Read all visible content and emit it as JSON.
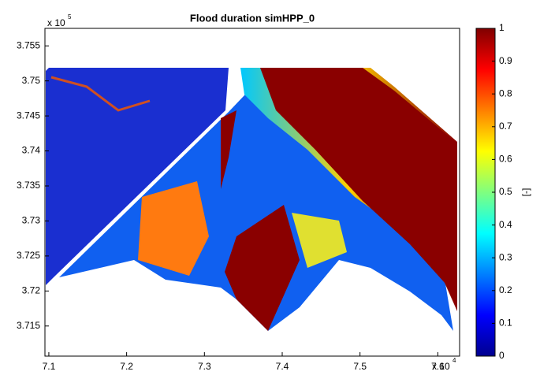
{
  "chart_data": {
    "type": "image",
    "title": "Flood duration simHPP_0",
    "xlim": [
      7.095,
      7.628
    ],
    "xticks": [
      7.1,
      7.2,
      7.3,
      7.4,
      7.5,
      7.6
    ],
    "ylim": [
      3.7107,
      3.7575
    ],
    "yticks": [
      3.715,
      3.72,
      3.725,
      3.73,
      3.735,
      3.74,
      3.745,
      3.75,
      3.755
    ],
    "x_multiplier": "x 10",
    "x_exponent": "4",
    "y_multiplier": "x 10",
    "y_exponent": "5",
    "colormap": "jet",
    "colorbar": {
      "label": "[-]",
      "lim": [
        0,
        1
      ],
      "ticks": [
        0,
        0.1,
        0.2,
        0.3,
        0.4,
        0.5,
        0.6,
        0.7,
        0.8,
        0.9,
        1
      ]
    }
  }
}
